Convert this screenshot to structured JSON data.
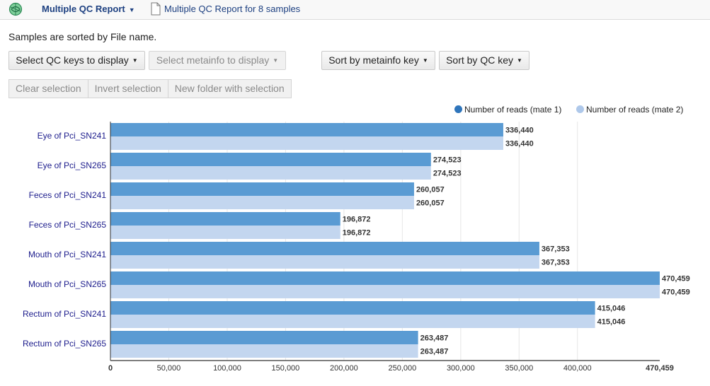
{
  "header": {
    "report_menu_label": "Multiple QC Report",
    "document_title": "Multiple QC Report for 8 samples"
  },
  "sort_note": "Samples are sorted by File name.",
  "toolbar": {
    "select_qc_keys": "Select QC keys to display",
    "select_metainfo": "Select metainfo to display",
    "sort_by_metainfo": "Sort by metainfo key",
    "sort_by_qc": "Sort by QC key"
  },
  "selection_buttons": {
    "clear": "Clear selection",
    "invert": "Invert selection",
    "new_folder": "New folder with selection"
  },
  "colors": {
    "mate1": "#5a9bd3",
    "mate2": "#c3d6ef",
    "legend_mate1": "#2f75bb",
    "legend_mate2": "#aec8ea",
    "category_label": "#1c1c8c",
    "grid": "#e6e6e6"
  },
  "chart_data": {
    "type": "bar",
    "orientation": "horizontal",
    "categories": [
      "Eye of Pci_SN241",
      "Eye of Pci_SN265",
      "Feces of Pci_SN241",
      "Feces of Pci_SN265",
      "Mouth of Pci_SN241",
      "Mouth of Pci_SN265",
      "Rectum of Pci_SN241",
      "Rectum of Pci_SN265"
    ],
    "series": [
      {
        "name": "Number of reads (mate 1)",
        "values": [
          336440,
          274523,
          260057,
          196872,
          367353,
          470459,
          415046,
          263487
        ]
      },
      {
        "name": "Number of reads (mate 2)",
        "values": [
          336440,
          274523,
          260057,
          196872,
          367353,
          470459,
          415046,
          263487
        ]
      }
    ],
    "data_labels": [
      [
        "336,440",
        "274,523",
        "260,057",
        "196,872",
        "367,353",
        "470,459",
        "415,046",
        "263,487"
      ],
      [
        "336,440",
        "274,523",
        "260,057",
        "196,872",
        "367,353",
        "470,459",
        "415,046",
        "263,487"
      ]
    ],
    "xlim": [
      0,
      470459
    ],
    "x_ticks": [
      0,
      50000,
      100000,
      150000,
      200000,
      250000,
      300000,
      350000,
      400000
    ],
    "x_tick_labels": [
      "0",
      "50,000",
      "100,000",
      "150,000",
      "200,000",
      "250,000",
      "300,000",
      "350,000",
      "400,000"
    ],
    "x_max_label": "470,459",
    "legend_position": "top-right",
    "grid": true,
    "title": "",
    "xlabel": "",
    "ylabel": ""
  }
}
